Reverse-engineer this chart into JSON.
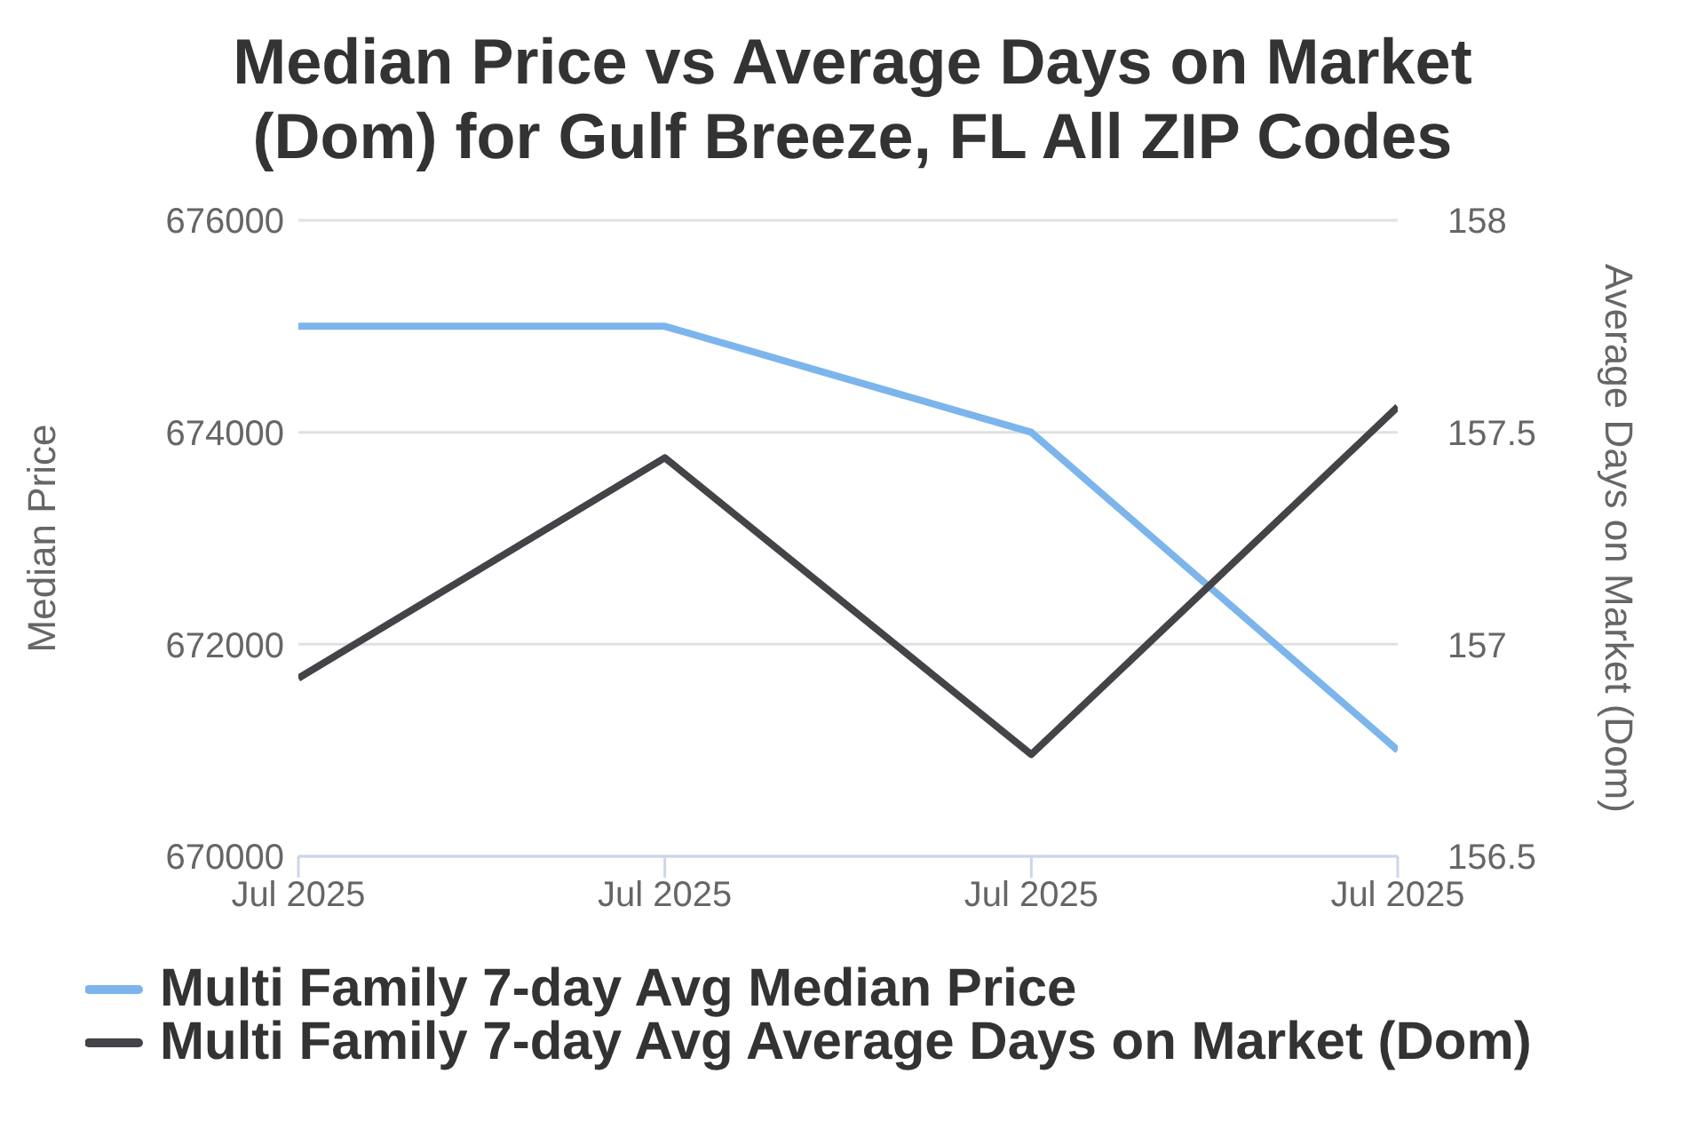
{
  "chart_data": {
    "type": "line",
    "title": "Median Price vs Average Days on Market (Dom) for Gulf Breeze, FL All ZIP Codes",
    "categories": [
      "Jul 2025",
      "Jul 2025",
      "Jul 2025",
      "Jul 2025"
    ],
    "series": [
      {
        "name": "Multi Family 7-day Avg Median Price",
        "color": "#7cb5ec",
        "values": [
          675000,
          675000,
          674000,
          671000
        ]
      },
      {
        "name": "Multi Family 7-day Avg Average Days on Market (Dom)",
        "color": "#434348",
        "axis": "y2",
        "values": [
          156.92,
          157.44,
          156.74,
          157.56
        ]
      }
    ],
    "ylabel": "Median Price",
    "y2label": "Average Days on Market (Dom)",
    "ylim": [
      670000,
      676000
    ],
    "yticks": [
      670000,
      672000,
      674000,
      676000
    ],
    "y2lim": [
      156.5,
      158
    ],
    "y2ticks": [
      156.5,
      157,
      157.5,
      158
    ],
    "grid": "y",
    "legend": "bottom",
    "marker": "none",
    "line_style": "solid"
  }
}
